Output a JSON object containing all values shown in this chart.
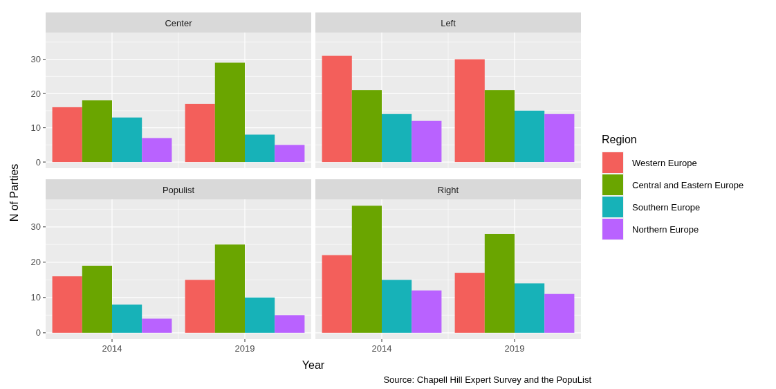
{
  "chart_data": [
    {
      "type": "bar",
      "title": "Center",
      "categories": [
        "2014",
        "2019"
      ],
      "ylabel": "N of Parties",
      "ylim": [
        -1.8,
        37.8
      ],
      "yticks": [
        0,
        10,
        20,
        30
      ],
      "grid": true,
      "tick_labels": "y",
      "series": [
        {
          "color": "#f35f5b",
          "values": [
            16,
            17
          ]
        },
        {
          "color": "#6aa500",
          "values": [
            18,
            29
          ]
        },
        {
          "color": "#17b2b8",
          "values": [
            13,
            8
          ]
        },
        {
          "color": "#b962ff",
          "values": [
            7,
            5
          ]
        }
      ]
    },
    {
      "type": "bar",
      "title": "Left",
      "categories": [
        "2014",
        "2019"
      ],
      "ylim": [
        -1.8,
        37.8
      ],
      "yticks": [
        0,
        10,
        20,
        30
      ],
      "grid": true,
      "tick_labels": false,
      "series": [
        {
          "color": "#f35f5b",
          "values": [
            31,
            30
          ]
        },
        {
          "color": "#6aa500",
          "values": [
            21,
            21
          ]
        },
        {
          "color": "#17b2b8",
          "values": [
            14,
            15
          ]
        },
        {
          "color": "#b962ff",
          "values": [
            12,
            14
          ]
        }
      ]
    },
    {
      "type": "bar",
      "title": "Populist",
      "categories": [
        "2014",
        "2019"
      ],
      "ylim": [
        -1.8,
        37.8
      ],
      "yticks": [
        0,
        10,
        20,
        30
      ],
      "grid": true,
      "series": [
        {
          "color": "#f35f5b",
          "values": [
            16,
            15
          ]
        },
        {
          "color": "#6aa500",
          "values": [
            19,
            25
          ]
        },
        {
          "color": "#17b2b8",
          "values": [
            8,
            10
          ]
        },
        {
          "color": "#b962ff",
          "values": [
            4,
            5
          ]
        }
      ]
    },
    {
      "type": "bar",
      "title": "Right",
      "categories": [
        "2014",
        "2019"
      ],
      "xlabel": "Year",
      "ylim": [
        -1.8,
        37.8
      ],
      "yticks": [
        0,
        10,
        20,
        30
      ],
      "grid": true,
      "tick_labels": "x",
      "legend": "right",
      "legend_title": "Region",
      "annotations": [
        "Source: Chapell Hill Expert Survey and the PopuList"
      ],
      "series": [
        {
          "name": "Western Europe",
          "color": "#f35f5b",
          "values": [
            22,
            17
          ]
        },
        {
          "name": "Central and Eastern Europe",
          "color": "#6aa500",
          "values": [
            36,
            28
          ]
        },
        {
          "name": "Southern Europe",
          "color": "#17b2b8",
          "values": [
            15,
            14
          ]
        },
        {
          "name": "Northern Europe",
          "color": "#b962ff",
          "values": [
            12,
            11
          ]
        }
      ]
    }
  ]
}
